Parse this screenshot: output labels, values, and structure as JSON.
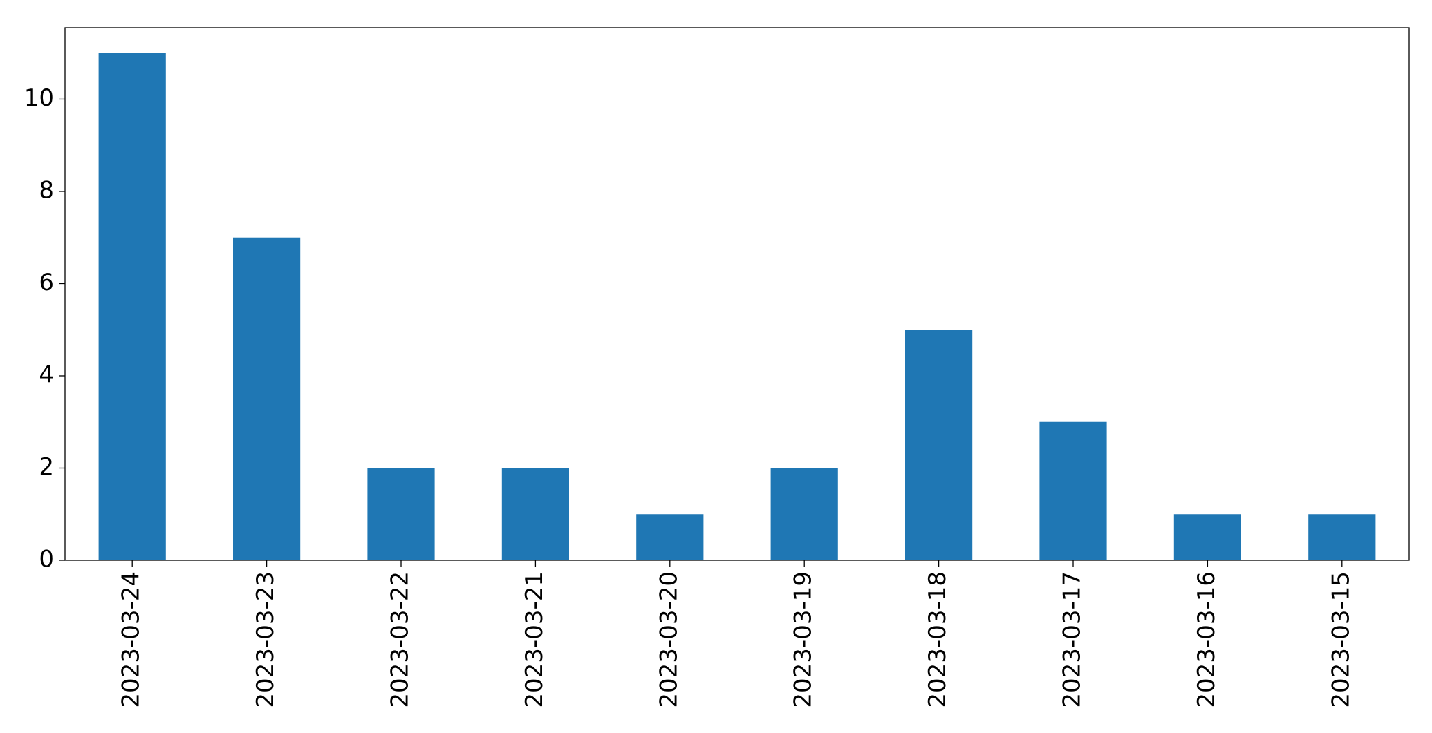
{
  "chart_data": {
    "type": "bar",
    "categories": [
      "2023-03-24",
      "2023-03-23",
      "2023-03-22",
      "2023-03-21",
      "2023-03-20",
      "2023-03-19",
      "2023-03-18",
      "2023-03-17",
      "2023-03-16",
      "2023-03-15"
    ],
    "values": [
      11,
      7,
      2,
      2,
      1,
      2,
      5,
      3,
      1,
      1
    ],
    "color": "#1f77b4",
    "ylim": [
      0,
      11.55
    ],
    "yticks": [
      0,
      2,
      4,
      6,
      8,
      10
    ],
    "grid": false
  }
}
